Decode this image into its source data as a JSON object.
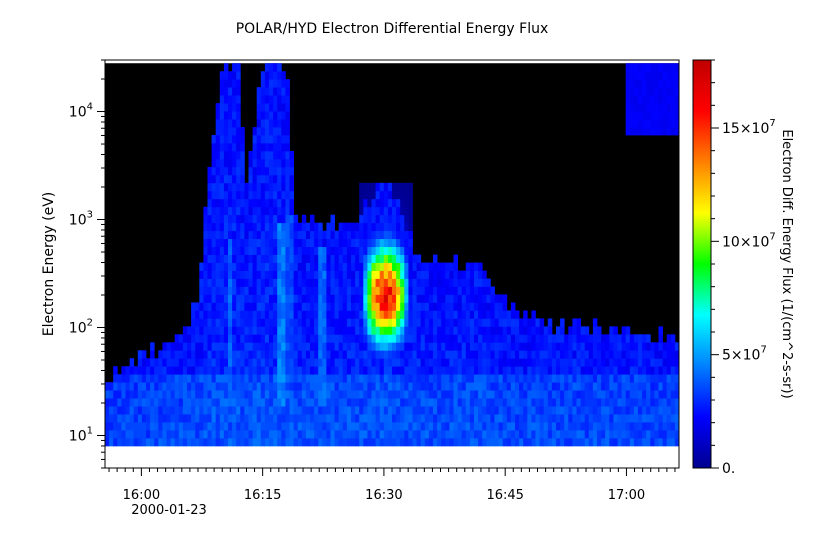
{
  "chart_data": {
    "type": "heatmap",
    "title": "POLAR/HYD  Electron Differential Energy Flux",
    "xlabel": "",
    "ylabel": "Electron Energy (eV)",
    "colorbar_label": "Electron Diff. Energy Flux (1/(cm^2-s-sr))",
    "date_label": "2000-01-23",
    "x_ticks": [
      "16:00",
      "16:15",
      "16:30",
      "16:45",
      "17:00"
    ],
    "x_tick_minutes": [
      0,
      15,
      30,
      45,
      60
    ],
    "x_range_minutes": [
      -4.5,
      66.5
    ],
    "y_scale": "log",
    "y_range": [
      5,
      30000
    ],
    "y_data_range": [
      8,
      28000
    ],
    "y_ticks": [
      {
        "base": "10",
        "exp": "1",
        "value": 10
      },
      {
        "base": "10",
        "exp": "2",
        "value": 100
      },
      {
        "base": "10",
        "exp": "3",
        "value": 1000
      },
      {
        "base": "10",
        "exp": "4",
        "value": 10000
      }
    ],
    "z_range": [
      0,
      180000000
    ],
    "colorbar_ticks": [
      {
        "base": "0.",
        "exp": "",
        "value": 0
      },
      {
        "base": "5×10",
        "exp": "7",
        "value": 50000000
      },
      {
        "base": "10×10",
        "exp": "7",
        "value": 100000000
      },
      {
        "base": "15×10",
        "exp": "7",
        "value": 150000000
      }
    ],
    "colormap": "rainbow",
    "background_color": "#000000",
    "flux_envelope": [
      {
        "t": -4.5,
        "e_top": 32
      },
      {
        "t": 0,
        "e_top": 55
      },
      {
        "t": 5,
        "e_top": 80
      },
      {
        "t": 7,
        "e_top": 200
      },
      {
        "t": 8,
        "e_top": 1500
      },
      {
        "t": 10,
        "e_top": 28000
      },
      {
        "t": 12,
        "e_top": 28000
      },
      {
        "t": 13,
        "e_top": 2000
      },
      {
        "t": 15,
        "e_top": 28000
      },
      {
        "t": 18,
        "e_top": 28000
      },
      {
        "t": 19,
        "e_top": 1200
      },
      {
        "t": 22,
        "e_top": 900
      },
      {
        "t": 26,
        "e_top": 900
      },
      {
        "t": 28,
        "e_top": 1500
      },
      {
        "t": 30,
        "e_top": 2500
      },
      {
        "t": 32,
        "e_top": 1200
      },
      {
        "t": 34,
        "e_top": 500
      },
      {
        "t": 38,
        "e_top": 400
      },
      {
        "t": 42,
        "e_top": 350
      },
      {
        "t": 46,
        "e_top": 150
      },
      {
        "t": 50,
        "e_top": 110
      },
      {
        "t": 55,
        "e_top": 100
      },
      {
        "t": 60,
        "e_top": 90
      },
      {
        "t": 66.5,
        "e_top": 80
      }
    ],
    "spikes": [
      {
        "t": 11.0,
        "e_low": 20,
        "e_high": 700,
        "flux": 45000000
      },
      {
        "t": 17.5,
        "e_low": 20,
        "e_high": 1000,
        "flux": 50000000
      },
      {
        "t": 18.5,
        "e_low": 30,
        "e_high": 1200,
        "flux": 40000000
      },
      {
        "t": 22.2,
        "e_low": 20,
        "e_high": 600,
        "flux": 45000000
      }
    ],
    "burst": {
      "t_center": 30.2,
      "t_half_width": 3.2,
      "e_low": 15,
      "e_high": 2200,
      "e_peak": 200,
      "flux_peak": 175000000
    },
    "upper_right_patch": {
      "t_start": 60,
      "t_end": 66.5,
      "e_low": 6000,
      "e_high": 28000,
      "flux": 22000000
    }
  }
}
